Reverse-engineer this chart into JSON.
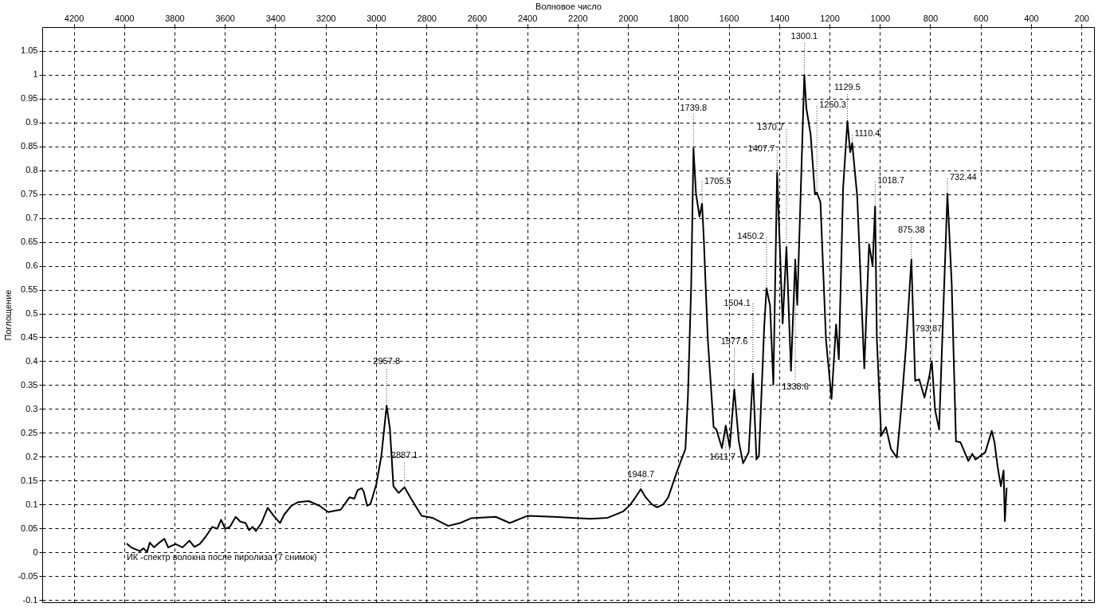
{
  "chart_data": {
    "type": "line",
    "xlabel": "Волновое число",
    "ylabel": "Поглощение",
    "xlim": [
      4325,
      150
    ],
    "xticks": [
      4200,
      4000,
      3800,
      3600,
      3400,
      3200,
      3000,
      2800,
      2600,
      2400,
      2200,
      2000,
      1800,
      1600,
      1400,
      1200,
      1000,
      800,
      600,
      400,
      200
    ],
    "ylim": [
      -0.105,
      1.1
    ],
    "yticks": [
      -0.1,
      -0.05,
      0,
      0.05,
      0.1,
      0.15,
      0.2,
      0.25,
      0.3,
      0.35,
      0.4,
      0.45,
      0.5,
      0.55,
      0.6,
      0.65,
      0.7,
      0.75,
      0.8,
      0.85,
      0.9,
      0.95,
      1,
      1.05
    ],
    "grid": true,
    "marker": "none",
    "line_style": "solid",
    "series": [
      {
        "name": "ИК -спектр волокна после пиролиза (7 снимок)",
        "color": "#000000",
        "x": [
          3990,
          3972,
          3937,
          3923,
          3909,
          3898,
          3881,
          3860,
          3840,
          3825,
          3796,
          3768,
          3741,
          3721,
          3700,
          3678,
          3650,
          3630,
          3615,
          3599,
          3580,
          3557,
          3539,
          3518,
          3504,
          3490,
          3477,
          3455,
          3430,
          3406,
          3381,
          3364,
          3336,
          3308,
          3267,
          3224,
          3190,
          3140,
          3105,
          3086,
          3073,
          3057,
          3049,
          3035,
          3022,
          2999,
          2979,
          2958,
          2945,
          2931,
          2910,
          2887,
          2861,
          2819,
          2777,
          2714,
          2666,
          2623,
          2525,
          2469,
          2400,
          2295,
          2150,
          2080,
          2020,
          1990,
          1970,
          1949,
          1930,
          1905,
          1884,
          1860,
          1840,
          1806,
          1772,
          1762,
          1749,
          1740,
          1730,
          1716,
          1706,
          1699,
          1683,
          1660,
          1649,
          1627,
          1612,
          1596,
          1578,
          1560,
          1543,
          1521,
          1504,
          1490,
          1480,
          1459,
          1450,
          1436,
          1423,
          1408,
          1386,
          1371,
          1353,
          1336,
          1328,
          1300,
          1292,
          1275,
          1258,
          1250,
          1236,
          1214,
          1192,
          1174,
          1163,
          1146,
          1129,
          1118,
          1110,
          1090,
          1062,
          1043,
          1029,
          1019,
          1012,
          995,
          976,
          956,
          933,
          916,
          897,
          875,
          860,
          844,
          823,
          804,
          794,
          781,
          765,
          732,
          715,
          698,
          680,
          649,
          633,
          621,
          582,
          556,
          545,
          533,
          520,
          509,
          504,
          497
        ],
        "values": [
          0.018,
          0.01,
          0.002,
          0.008,
          0,
          0.02,
          0.01,
          0.02,
          0.028,
          0.01,
          0.017,
          0.01,
          0.024,
          0.011,
          0.017,
          0.031,
          0.053,
          0.049,
          0.068,
          0.049,
          0.053,
          0.074,
          0.064,
          0.061,
          0.046,
          0.053,
          0.044,
          0.061,
          0.093,
          0.076,
          0.061,
          0.079,
          0.097,
          0.105,
          0.107,
          0.097,
          0.084,
          0.089,
          0.115,
          0.112,
          0.13,
          0.134,
          0.127,
          0.097,
          0.101,
          0.142,
          0.201,
          0.307,
          0.259,
          0.138,
          0.124,
          0.136,
          0.112,
          0.076,
          0.072,
          0.055,
          0.061,
          0.071,
          0.074,
          0.061,
          0.076,
          0.074,
          0.07,
          0.072,
          0.085,
          0.1,
          0.115,
          0.132,
          0.115,
          0.1,
          0.094,
          0.1,
          0.115,
          0.168,
          0.216,
          0.327,
          0.56,
          0.846,
          0.751,
          0.703,
          0.73,
          0.656,
          0.445,
          0.262,
          0.257,
          0.218,
          0.265,
          0.22,
          0.341,
          0.232,
          0.186,
          0.209,
          0.374,
          0.194,
          0.203,
          0.474,
          0.553,
          0.516,
          0.351,
          0.795,
          0.479,
          0.639,
          0.38,
          0.613,
          0.518,
          1.0,
          0.93,
          0.875,
          0.751,
          0.753,
          0.733,
          0.445,
          0.321,
          0.477,
          0.404,
          0.763,
          0.903,
          0.838,
          0.857,
          0.745,
          0.385,
          0.645,
          0.6,
          0.724,
          0.445,
          0.244,
          0.262,
          0.216,
          0.198,
          0.298,
          0.427,
          0.613,
          0.359,
          0.362,
          0.324,
          0.368,
          0.4,
          0.298,
          0.257,
          0.751,
          0.562,
          0.232,
          0.23,
          0.191,
          0.206,
          0.194,
          0.209,
          0.254,
          0.23,
          0.18,
          0.138,
          0.171,
          0.065,
          0.135
        ]
      }
    ],
    "annotations": [
      {
        "text": "2957.8",
        "x": 2958,
        "y": 0.307
      },
      {
        "text": "2887.1",
        "x": 2887,
        "y": 0.136
      },
      {
        "text": "1948.7",
        "x": 1949,
        "y": 0.132
      },
      {
        "text": "1739.8",
        "x": 1740,
        "y": 0.846
      },
      {
        "text": "1705.5",
        "x": 1706,
        "y": 0.73
      },
      {
        "text": "1611.7",
        "x": 1612,
        "y": 0.265
      },
      {
        "text": "1577.6",
        "x": 1578,
        "y": 0.341
      },
      {
        "text": "1504.1",
        "x": 1504,
        "y": 0.374
      },
      {
        "text": "1450.2",
        "x": 1450,
        "y": 0.553
      },
      {
        "text": "1407.7",
        "x": 1408,
        "y": 0.795
      },
      {
        "text": "1370.7",
        "x": 1371,
        "y": 0.639
      },
      {
        "text": "1338.6",
        "x": 1336,
        "y": 0.613
      },
      {
        "text": "1300.1",
        "x": 1300,
        "y": 1.0
      },
      {
        "text": "1250.3",
        "x": 1250,
        "y": 0.753
      },
      {
        "text": "1129.5",
        "x": 1129,
        "y": 0.903
      },
      {
        "text": "1110.4",
        "x": 1110,
        "y": 0.857
      },
      {
        "text": "1018.7",
        "x": 1019,
        "y": 0.724
      },
      {
        "text": "875.38",
        "x": 875,
        "y": 0.613
      },
      {
        "text": "793.87",
        "x": 794,
        "y": 0.4
      },
      {
        "text": "732.44",
        "x": 732,
        "y": 0.751
      }
    ]
  }
}
